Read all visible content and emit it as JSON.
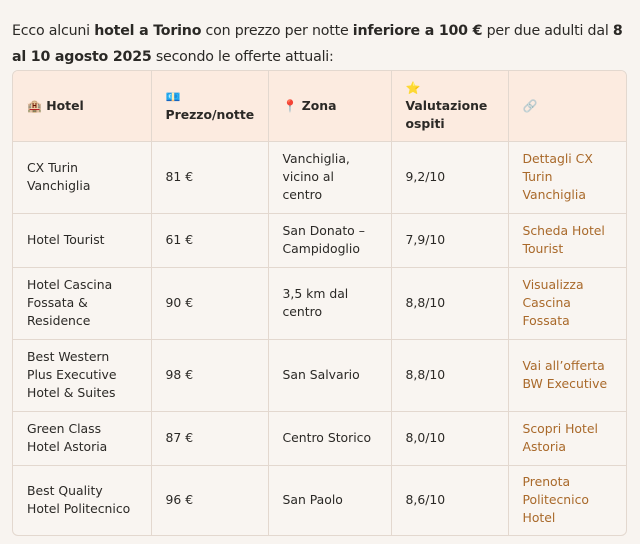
{
  "intro": {
    "t1": "Ecco alcuni ",
    "b1": "hotel a Torino",
    "t2": " con prezzo per notte ",
    "b2": "inferiore a 100 €",
    "t3": " per due adulti dal ",
    "b3": "8 al 10 agosto 2025",
    "t4": " secondo le offerte attuali:"
  },
  "table": {
    "headers": [
      {
        "icon": "🏨",
        "label": "Hotel"
      },
      {
        "icon": "💶",
        "label": "Prezzo/notte"
      },
      {
        "icon": "📍",
        "label": "Zona"
      },
      {
        "icon": "⭐",
        "label": "Valutazione ospiti"
      },
      {
        "icon": "🔗",
        "label": ""
      }
    ],
    "rows": [
      {
        "hotel": "CX Turin Vanchiglia",
        "price": "81 €",
        "zone": "Vanchiglia, vicino al centro",
        "rating": "9,2/10",
        "link": "Dettagli CX Turin Vanchiglia"
      },
      {
        "hotel": "Hotel Tourist",
        "price": "61 €",
        "zone": "San Donato – Campidoglio",
        "rating": "7,9/10",
        "link": "Scheda Hotel Tourist"
      },
      {
        "hotel": "Hotel Cascina Fossata & Residence",
        "price": "90 €",
        "zone": "3,5 km dal centro",
        "rating": "8,8/10",
        "link": "Visualizza Cascina Fossata"
      },
      {
        "hotel": "Best Western Plus Executive Hotel & Suites",
        "price": "98 €",
        "zone": "San Salvario",
        "rating": "8,8/10",
        "link": "Vai all’offerta BW Executive"
      },
      {
        "hotel": "Green Class Hotel Astoria",
        "price": "87 €",
        "zone": "Centro Storico",
        "rating": "8,0/10",
        "link": "Scopri Hotel Astoria"
      },
      {
        "hotel": "Best Quality Hotel Politecnico",
        "price": "96 €",
        "zone": "San Paolo",
        "rating": "8,6/10",
        "link": "Prenota Politecnico Hotel"
      }
    ]
  },
  "colors": {
    "link": "#a9692a",
    "header_bg": "#fcebe0",
    "page_bg": "#f8f4f0"
  }
}
